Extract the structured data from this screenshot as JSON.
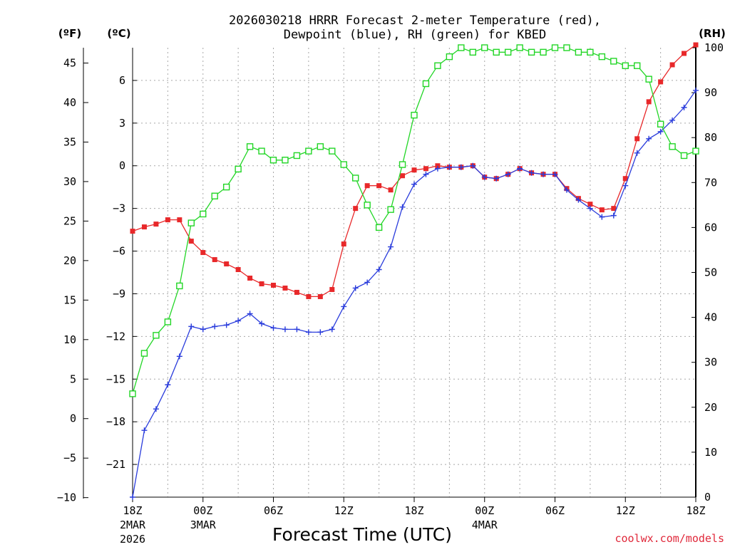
{
  "title_line1": "2026030218 HRRR Forecast 2-meter Temperature (red),",
  "title_line2": "Dewpoint (blue), RH (green) for KBED",
  "credit": "coolwx.com/models",
  "colors": {
    "temperature": "#e8282a",
    "dewpoint": "#2a3cdc",
    "rh": "#22d626",
    "credit": "#e0283a",
    "grid": "#a8a8a8"
  },
  "chart_data": {
    "type": "line",
    "title": "2026030218 HRRR Forecast 2-meter Temperature (red), Dewpoint (blue), RH (green) for KBED",
    "xlabel": "Forecast Time (UTC)",
    "x_hours": [
      0,
      1,
      2,
      3,
      4,
      5,
      6,
      7,
      8,
      9,
      10,
      11,
      12,
      13,
      14,
      15,
      16,
      17,
      18,
      19,
      20,
      21,
      22,
      23,
      24,
      25,
      26,
      27,
      28,
      29,
      30,
      31,
      32,
      33,
      34,
      35,
      36,
      37,
      38,
      39,
      40,
      41,
      42,
      43,
      44,
      45,
      46,
      47,
      48
    ],
    "x_ticks": [
      {
        "hour": 0,
        "label": "18Z",
        "date1": "2MAR",
        "date2": "2026"
      },
      {
        "hour": 6,
        "label": "00Z",
        "date1": "3MAR"
      },
      {
        "hour": 12,
        "label": "06Z"
      },
      {
        "hour": 18,
        "label": "12Z"
      },
      {
        "hour": 24,
        "label": "18Z"
      },
      {
        "hour": 30,
        "label": "00Z",
        "date1": "4MAR"
      },
      {
        "hour": 36,
        "label": "06Z"
      },
      {
        "hour": 42,
        "label": "12Z"
      },
      {
        "hour": 48,
        "label": "18Z"
      }
    ],
    "y_left_f": {
      "unit_label": "(ºF)",
      "ticks": [
        "45",
        "40",
        "35",
        "30",
        "25",
        "20",
        "15",
        "10",
        "5",
        "0",
        "−5",
        "−10"
      ],
      "tick_values": [
        45,
        40,
        35,
        30,
        25,
        20,
        15,
        10,
        5,
        0,
        -5,
        -10
      ]
    },
    "y_left_c": {
      "unit_label": "(ºC)",
      "range": [
        -23.3,
        8.3
      ],
      "ticks": [
        "6",
        "3",
        "0",
        "−3",
        "−6",
        "−9",
        "−12",
        "−15",
        "−18",
        "−21"
      ],
      "tick_values": [
        6,
        3,
        0,
        -3,
        -6,
        -9,
        -12,
        -15,
        -18,
        -21
      ]
    },
    "y_right_rh": {
      "unit_label": "(RH)",
      "range": [
        0,
        100
      ],
      "ticks": [
        "100",
        "90",
        "80",
        "70",
        "60",
        "50",
        "40",
        "30",
        "20",
        "10",
        "0"
      ],
      "tick_values": [
        100,
        90,
        80,
        70,
        60,
        50,
        40,
        30,
        20,
        10,
        0
      ]
    },
    "series": [
      {
        "name": "Temperature",
        "units": "C",
        "marker": "filled-square",
        "values": [
          -4.6,
          -4.3,
          -4.1,
          -3.8,
          -3.8,
          -5.3,
          -6.1,
          -6.6,
          -6.9,
          -7.3,
          -7.9,
          -8.3,
          -8.4,
          -8.6,
          -8.9,
          -9.2,
          -9.2,
          -8.7,
          -5.5,
          -3.0,
          -1.4,
          -1.4,
          -1.7,
          -0.7,
          -0.3,
          -0.2,
          0.0,
          -0.1,
          -0.1,
          0.0,
          -0.8,
          -0.9,
          -0.6,
          -0.2,
          -0.5,
          -0.6,
          -0.6,
          -1.6,
          -2.3,
          -2.7,
          -3.1,
          -3.0,
          -0.9,
          1.9,
          4.5,
          5.9,
          7.1,
          7.9,
          8.5
        ]
      },
      {
        "name": "Dewpoint",
        "units": "C",
        "marker": "plus",
        "values": [
          -23.3,
          -18.6,
          -17.1,
          -15.4,
          -13.4,
          -11.3,
          -11.5,
          -11.3,
          -11.2,
          -10.9,
          -10.4,
          -11.1,
          -11.4,
          -11.5,
          -11.5,
          -11.7,
          -11.7,
          -11.5,
          -9.9,
          -8.6,
          -8.2,
          -7.3,
          -5.7,
          -2.9,
          -1.3,
          -0.6,
          -0.2,
          -0.1,
          -0.1,
          0.0,
          -0.8,
          -0.9,
          -0.6,
          -0.2,
          -0.5,
          -0.6,
          -0.6,
          -1.7,
          -2.4,
          -3.0,
          -3.6,
          -3.5,
          -1.4,
          0.9,
          1.9,
          2.4,
          3.2,
          4.1,
          5.3
        ]
      },
      {
        "name": "RH",
        "units": "%",
        "axis": "right",
        "marker": "open-square",
        "values": [
          23,
          32,
          36,
          39,
          47,
          61,
          63,
          67,
          69,
          73,
          78,
          77,
          75,
          75,
          76,
          77,
          78,
          77,
          74,
          71,
          65,
          60,
          64,
          74,
          85,
          92,
          96,
          98,
          100,
          99,
          100,
          99,
          99,
          100,
          99,
          99,
          100,
          100,
          99,
          99,
          98,
          97,
          96,
          96,
          93,
          83,
          78,
          76,
          77
        ]
      }
    ]
  }
}
